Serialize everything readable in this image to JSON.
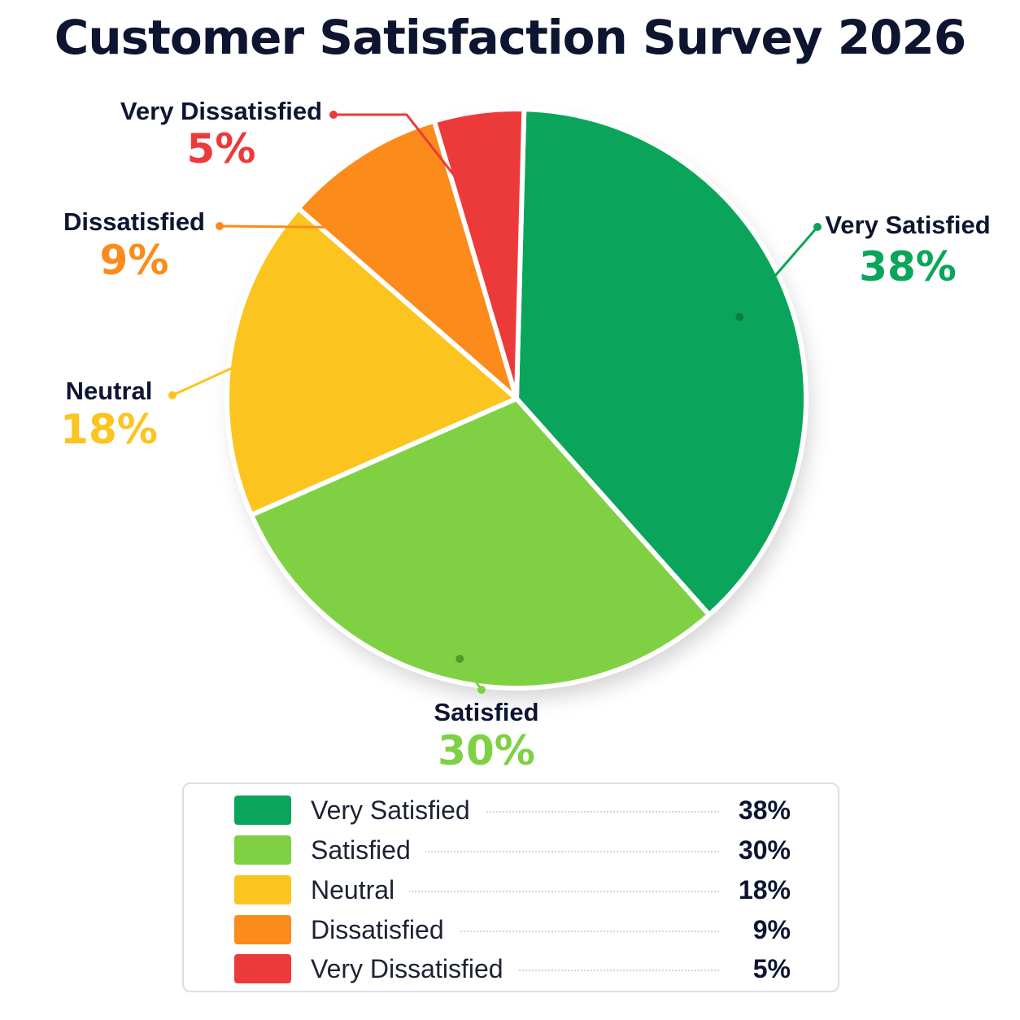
{
  "title": "Customer Satisfaction Survey 2026",
  "chart_data": {
    "type": "pie",
    "title": "Customer Satisfaction Survey 2026",
    "unit": "%",
    "categories": [
      "Very Satisfied",
      "Satisfied",
      "Neutral",
      "Dissatisfied",
      "Very Dissatisfied"
    ],
    "values": [
      38,
      30,
      18,
      9,
      5
    ],
    "value_labels": [
      "38%",
      "30%",
      "18%",
      "9%",
      "5%"
    ],
    "colors": [
      "#0aa55a",
      "#7fd143",
      "#fcc41f",
      "#fb8b1a",
      "#ec3a3a"
    ],
    "legend_position": "bottom"
  },
  "legend": {
    "items": [
      {
        "label": "Very Satisfied",
        "value": "38%",
        "color": "#0aa55a"
      },
      {
        "label": "Satisfied",
        "value": "30%",
        "color": "#7fd143"
      },
      {
        "label": "Neutral",
        "value": "18%",
        "color": "#fcc41f"
      },
      {
        "label": "Dissatisfied",
        "value": "9%",
        "color": "#fb8b1a"
      },
      {
        "label": "Very Dissatisfied",
        "value": "5%",
        "color": "#ec3a3a"
      }
    ]
  }
}
